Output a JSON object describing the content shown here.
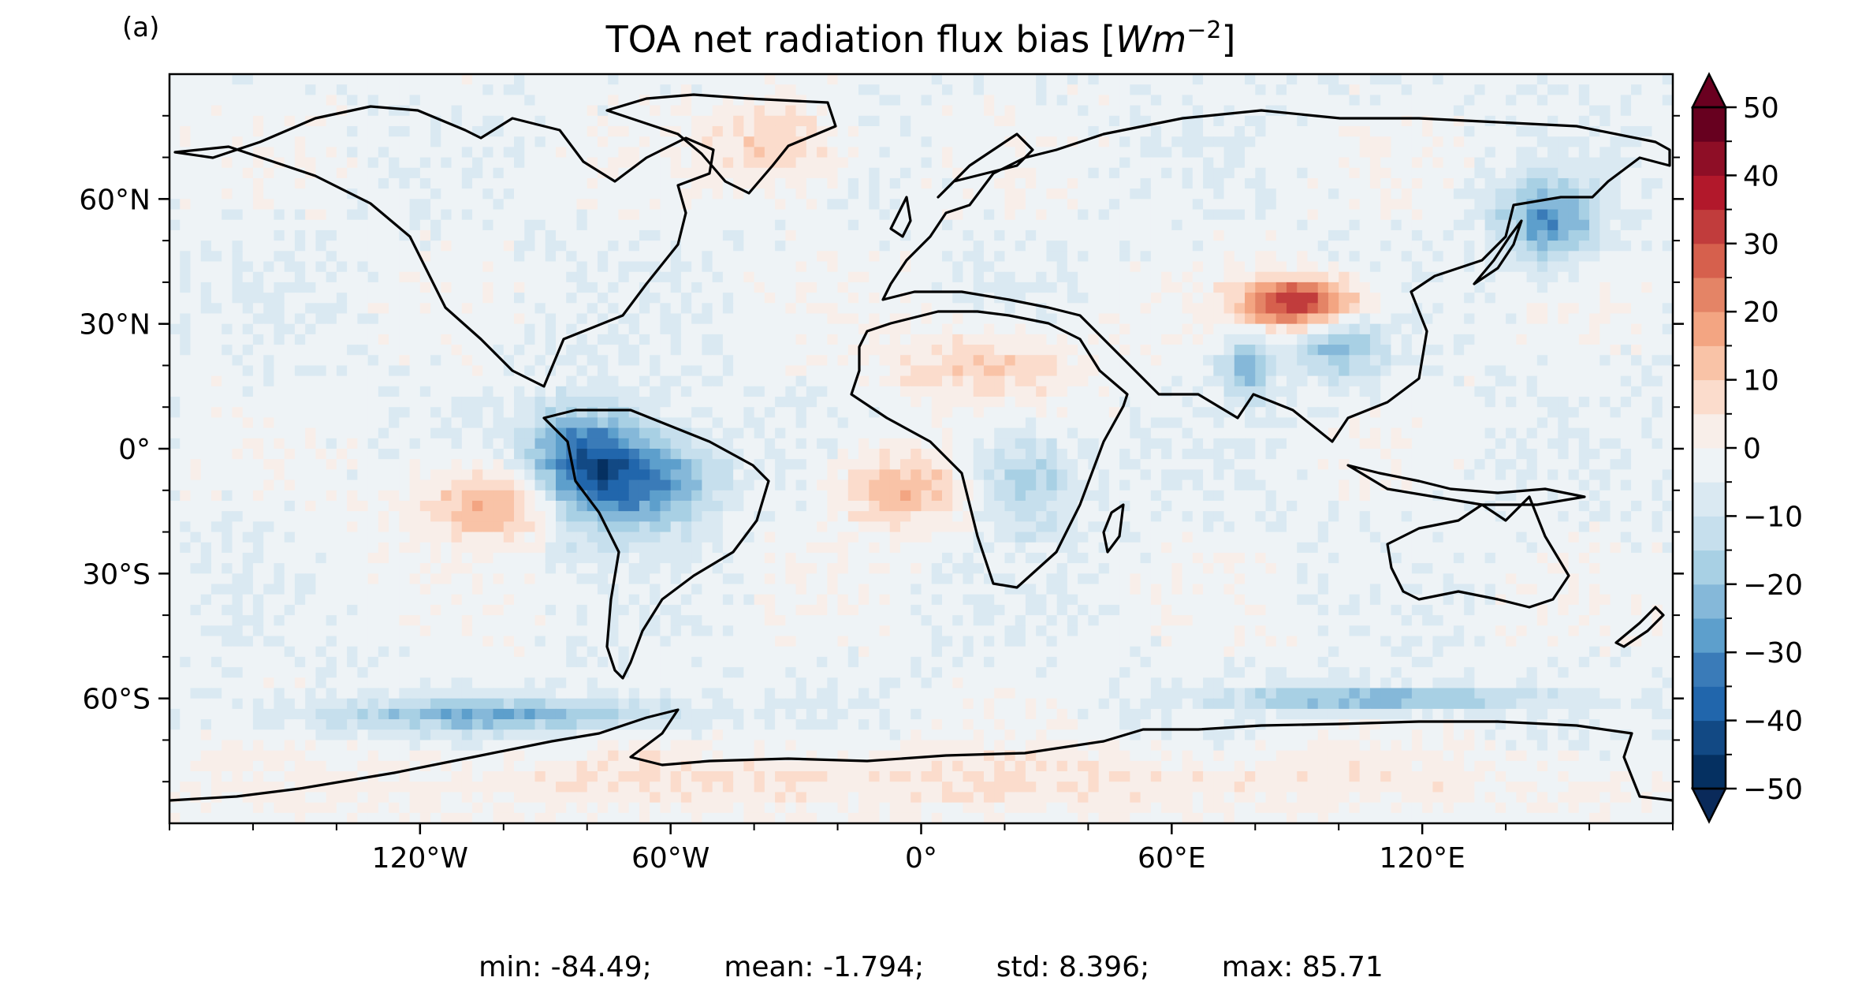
{
  "panel_label": "(a)",
  "chart_data": {
    "type": "heatmap",
    "title_prefix": "TOA net radiation flux bias ",
    "title_unit": "Wm",
    "title_exponent": "−2",
    "projection": "equirectangular global map with coastlines",
    "xlim": [
      -180,
      180
    ],
    "ylim": [
      -90,
      90
    ],
    "x_ticks": [
      -120,
      -60,
      0,
      60,
      120
    ],
    "x_tick_labels": [
      "120°W",
      "60°W",
      "0°",
      "60°E",
      "120°E"
    ],
    "y_ticks": [
      60,
      30,
      0,
      -30,
      -60
    ],
    "y_tick_labels": [
      "60°N",
      "30°N",
      "0°",
      "30°S",
      "60°S"
    ],
    "colorbar": {
      "colormap": "RdBu_r",
      "vmin": -50,
      "vmax": 50,
      "step": 5,
      "extend": "both",
      "tick_values": [
        50,
        40,
        30,
        20,
        10,
        0,
        -10,
        -20,
        -30,
        -40,
        -50
      ],
      "tick_labels": [
        "50",
        "40",
        "30",
        "20",
        "10",
        "0",
        "−10",
        "−20",
        "−30",
        "−40",
        "−50"
      ],
      "colors": [
        "#053061",
        "#124984",
        "#2166ac",
        "#3a7bb8",
        "#5d9fcc",
        "#85b8d9",
        "#a8d0e4",
        "#c6dfed",
        "#dae9f2",
        "#eef3f6",
        "#f8eee9",
        "#fbdccc",
        "#f9c3a7",
        "#f3a582",
        "#e48466",
        "#d6604d",
        "#c13c3c",
        "#b2182b",
        "#8e0e26",
        "#67001f"
      ],
      "under_color": "#0a2a5a",
      "over_color": "#6a0020"
    },
    "regions": [
      {
        "lon": -80,
        "lat": -5,
        "rx": 14,
        "ry": 14,
        "value": -40
      },
      {
        "lon": -62,
        "lat": -8,
        "rx": 14,
        "ry": 11,
        "value": -22
      },
      {
        "lon": -100,
        "lat": -13,
        "rx": 20,
        "ry": 9,
        "value": 20
      },
      {
        "lon": -5,
        "lat": -10,
        "rx": 15,
        "ry": 9,
        "value": 18
      },
      {
        "lon": 15,
        "lat": 20,
        "rx": 25,
        "ry": 9,
        "value": 12
      },
      {
        "lon": 90,
        "lat": 35,
        "rx": 14,
        "ry": 6,
        "value": 40
      },
      {
        "lon": 100,
        "lat": 25,
        "rx": 10,
        "ry": 8,
        "value": -18
      },
      {
        "lon": 78,
        "lat": 20,
        "rx": 6,
        "ry": 8,
        "value": -20
      },
      {
        "lon": 150,
        "lat": 55,
        "rx": 12,
        "ry": 10,
        "value": -25
      },
      {
        "lon": -35,
        "lat": 73,
        "rx": 16,
        "ry": 10,
        "value": 14
      },
      {
        "lon": -100,
        "lat": -64,
        "rx": 45,
        "ry": 4,
        "value": -20
      },
      {
        "lon": 110,
        "lat": -60,
        "rx": 35,
        "ry": 3,
        "value": -22
      },
      {
        "lon": 25,
        "lat": -8,
        "rx": 12,
        "ry": 12,
        "value": -15
      },
      {
        "lon": 0,
        "lat": -80,
        "rx": 180,
        "ry": 8,
        "value": 8
      }
    ]
  },
  "stats": {
    "min": "min: -84.49;",
    "mean": "mean: -1.794;",
    "std": "std: 8.396;",
    "max": "max: 85.71"
  }
}
